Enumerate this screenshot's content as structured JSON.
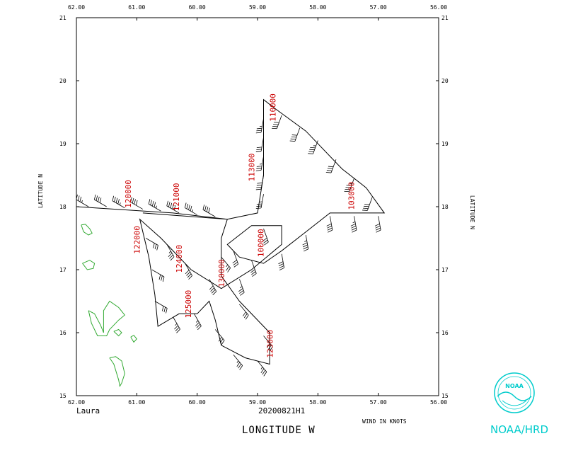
{
  "map": {
    "lon_range": [
      -62.0,
      -56.0
    ],
    "lat_range": [
      15,
      21
    ],
    "x_ticks": [
      "62.00",
      "61.00",
      "60.00",
      "59.00",
      "58.00",
      "57.00",
      "56.00"
    ],
    "y_ticks": [
      "15",
      "16",
      "17",
      "18",
      "19",
      "20",
      "21"
    ],
    "x_axis_label": "LONGITUDE   W",
    "y_axis_label": "LATITUDE   N",
    "storm_name": "Laura",
    "flight_id": "20200821H1",
    "wind_units_note": "WIND IN KNOTS",
    "org_label": "NOAA/HRD",
    "logo_text": "NOAA",
    "track_color": "#000000",
    "label_color": "#cc0000",
    "coast_color": "#33aa33",
    "logo_color": "#00cccc",
    "track": [
      [
        -62.0,
        18.0
      ],
      [
        -60.4,
        17.9
      ],
      [
        -59.5,
        17.8
      ],
      [
        -59.0,
        17.9
      ],
      [
        -58.9,
        18.5
      ],
      [
        -58.9,
        19.0
      ],
      [
        -58.9,
        19.7
      ],
      [
        -58.7,
        19.55
      ],
      [
        -58.2,
        19.2
      ],
      [
        -57.6,
        18.6
      ],
      [
        -57.2,
        18.3
      ],
      [
        -56.9,
        17.9
      ],
      [
        -57.3,
        17.9
      ],
      [
        -57.8,
        17.9
      ],
      [
        -58.2,
        17.6
      ],
      [
        -58.6,
        17.3
      ],
      [
        -58.9,
        17.1
      ],
      [
        -59.3,
        17.2
      ],
      [
        -59.5,
        17.4
      ],
      [
        -59.1,
        17.7
      ],
      [
        -58.6,
        17.7
      ],
      [
        -58.6,
        17.4
      ],
      [
        -59.1,
        17.0
      ],
      [
        -59.6,
        16.7
      ],
      [
        -60.1,
        17.0
      ],
      [
        -60.6,
        17.5
      ],
      [
        -60.95,
        17.8
      ],
      [
        -60.8,
        17.2
      ],
      [
        -60.7,
        16.6
      ],
      [
        -60.65,
        16.1
      ],
      [
        -60.3,
        16.3
      ],
      [
        -60.0,
        16.3
      ],
      [
        -59.8,
        16.5
      ],
      [
        -59.7,
        16.2
      ],
      [
        -59.6,
        15.8
      ],
      [
        -59.2,
        15.6
      ],
      [
        -58.8,
        15.5
      ],
      [
        -58.8,
        16.0
      ],
      [
        -59.3,
        16.5
      ],
      [
        -59.6,
        16.9
      ],
      [
        -59.6,
        17.5
      ],
      [
        -59.5,
        17.8
      ],
      [
        -60.9,
        17.9
      ]
    ],
    "barbs": [
      {
        "lon": -61.8,
        "lat": 18.0,
        "dir": 300,
        "spd": 35
      },
      {
        "lon": -61.5,
        "lat": 18.0,
        "dir": 300,
        "spd": 40
      },
      {
        "lon": -61.2,
        "lat": 17.98,
        "dir": 300,
        "spd": 45
      },
      {
        "lon": -60.9,
        "lat": 17.96,
        "dir": 300,
        "spd": 40
      },
      {
        "lon": -60.6,
        "lat": 17.93,
        "dir": 300,
        "spd": 45
      },
      {
        "lon": -60.3,
        "lat": 17.9,
        "dir": 300,
        "spd": 50
      },
      {
        "lon": -60.0,
        "lat": 17.87,
        "dir": 300,
        "spd": 45
      },
      {
        "lon": -59.7,
        "lat": 17.84,
        "dir": 300,
        "spd": 40
      },
      {
        "lon": -58.9,
        "lat": 18.2,
        "dir": 190,
        "spd": 35
      },
      {
        "lon": -58.9,
        "lat": 18.5,
        "dir": 190,
        "spd": 40
      },
      {
        "lon": -58.9,
        "lat": 18.8,
        "dir": 190,
        "spd": 35
      },
      {
        "lon": -58.9,
        "lat": 19.1,
        "dir": 190,
        "spd": 30
      },
      {
        "lon": -58.9,
        "lat": 19.4,
        "dir": 190,
        "spd": 35
      },
      {
        "lon": -58.6,
        "lat": 19.45,
        "dir": 200,
        "spd": 40
      },
      {
        "lon": -58.3,
        "lat": 19.25,
        "dir": 200,
        "spd": 40
      },
      {
        "lon": -58.0,
        "lat": 19.05,
        "dir": 200,
        "spd": 45
      },
      {
        "lon": -57.7,
        "lat": 18.75,
        "dir": 200,
        "spd": 40
      },
      {
        "lon": -57.4,
        "lat": 18.45,
        "dir": 200,
        "spd": 45
      },
      {
        "lon": -57.1,
        "lat": 18.15,
        "dir": 200,
        "spd": 40
      },
      {
        "lon": -57.0,
        "lat": 17.85,
        "dir": 170,
        "spd": 40
      },
      {
        "lon": -57.4,
        "lat": 17.85,
        "dir": 170,
        "spd": 45
      },
      {
        "lon": -57.8,
        "lat": 17.85,
        "dir": 170,
        "spd": 40
      },
      {
        "lon": -58.2,
        "lat": 17.55,
        "dir": 170,
        "spd": 45
      },
      {
        "lon": -58.6,
        "lat": 17.25,
        "dir": 170,
        "spd": 40
      },
      {
        "lon": -59.1,
        "lat": 17.15,
        "dir": 160,
        "spd": 30
      },
      {
        "lon": -59.4,
        "lat": 17.3,
        "dir": 160,
        "spd": 30
      },
      {
        "lon": -58.9,
        "lat": 17.65,
        "dir": 160,
        "spd": 30
      },
      {
        "lon": -59.3,
        "lat": 16.85,
        "dir": 160,
        "spd": 35
      },
      {
        "lon": -59.8,
        "lat": 16.85,
        "dir": 150,
        "spd": 40
      },
      {
        "lon": -60.2,
        "lat": 17.1,
        "dir": 150,
        "spd": 40
      },
      {
        "lon": -60.5,
        "lat": 17.4,
        "dir": 150,
        "spd": 35
      },
      {
        "lon": -60.85,
        "lat": 17.5,
        "dir": 120,
        "spd": 30
      },
      {
        "lon": -60.75,
        "lat": 17.0,
        "dir": 120,
        "spd": 30
      },
      {
        "lon": -60.7,
        "lat": 16.5,
        "dir": 120,
        "spd": 30
      },
      {
        "lon": -60.4,
        "lat": 16.25,
        "dir": 150,
        "spd": 35
      },
      {
        "lon": -60.05,
        "lat": 16.3,
        "dir": 150,
        "spd": 35
      },
      {
        "lon": -59.7,
        "lat": 16.05,
        "dir": 140,
        "spd": 30
      },
      {
        "lon": -59.4,
        "lat": 15.65,
        "dir": 140,
        "spd": 35
      },
      {
        "lon": -59.0,
        "lat": 15.55,
        "dir": 140,
        "spd": 35
      },
      {
        "lon": -58.9,
        "lat": 15.95,
        "dir": 140,
        "spd": 30
      },
      {
        "lon": -59.3,
        "lat": 16.45,
        "dir": 140,
        "spd": 30
      },
      {
        "lon": -59.6,
        "lat": 17.2,
        "dir": 140,
        "spd": 25
      }
    ],
    "time_labels": [
      {
        "text": "120000",
        "lon": -61.1,
        "lat": 17.98
      },
      {
        "text": "121000",
        "lon": -60.3,
        "lat": 17.93
      },
      {
        "text": "122000",
        "lon": -60.95,
        "lat": 17.25
      },
      {
        "text": "124000",
        "lon": -60.25,
        "lat": 16.95
      },
      {
        "text": "125000",
        "lon": -60.1,
        "lat": 16.23
      },
      {
        "text": "130000",
        "lon": -59.55,
        "lat": 16.72
      },
      {
        "text": "113000",
        "lon": -59.05,
        "lat": 18.4
      },
      {
        "text": "110000",
        "lon": -58.7,
        "lat": 19.35
      },
      {
        "text": "103000",
        "lon": -57.4,
        "lat": 17.95
      },
      {
        "text": "100000",
        "lon": -58.9,
        "lat": 17.2
      },
      {
        "text": "123000",
        "lon": -58.75,
        "lat": 15.6
      }
    ],
    "coast": [
      [
        [
          -61.92,
          17.71
        ],
        [
          -61.88,
          17.6
        ],
        [
          -61.8,
          17.55
        ],
        [
          -61.74,
          17.58
        ],
        [
          -61.78,
          17.65
        ],
        [
          -61.85,
          17.72
        ],
        [
          -61.92,
          17.71
        ]
      ],
      [
        [
          -61.9,
          17.1
        ],
        [
          -61.82,
          17.0
        ],
        [
          -61.72,
          17.02
        ],
        [
          -61.7,
          17.1
        ],
        [
          -61.78,
          17.15
        ],
        [
          -61.9,
          17.1
        ]
      ],
      [
        [
          -61.8,
          16.35
        ],
        [
          -61.7,
          16.3
        ],
        [
          -61.6,
          16.12
        ],
        [
          -61.55,
          16.0
        ],
        [
          -61.55,
          16.35
        ],
        [
          -61.45,
          16.5
        ],
        [
          -61.3,
          16.4
        ],
        [
          -61.2,
          16.28
        ],
        [
          -61.3,
          16.2
        ],
        [
          -61.45,
          16.05
        ],
        [
          -61.5,
          15.95
        ],
        [
          -61.65,
          15.95
        ],
        [
          -61.75,
          16.15
        ],
        [
          -61.8,
          16.35
        ]
      ],
      [
        [
          -61.38,
          16.02
        ],
        [
          -61.3,
          15.95
        ],
        [
          -61.25,
          16.0
        ],
        [
          -61.3,
          16.05
        ],
        [
          -61.38,
          16.02
        ]
      ],
      [
        [
          -61.1,
          15.93
        ],
        [
          -61.05,
          15.85
        ],
        [
          -61.0,
          15.9
        ],
        [
          -61.05,
          15.96
        ],
        [
          -61.1,
          15.93
        ]
      ],
      [
        [
          -61.45,
          15.6
        ],
        [
          -61.38,
          15.5
        ],
        [
          -61.3,
          15.25
        ],
        [
          -61.28,
          15.15
        ],
        [
          -61.25,
          15.2
        ],
        [
          -61.2,
          15.35
        ],
        [
          -61.25,
          15.55
        ],
        [
          -61.35,
          15.62
        ],
        [
          -61.45,
          15.6
        ]
      ]
    ]
  }
}
